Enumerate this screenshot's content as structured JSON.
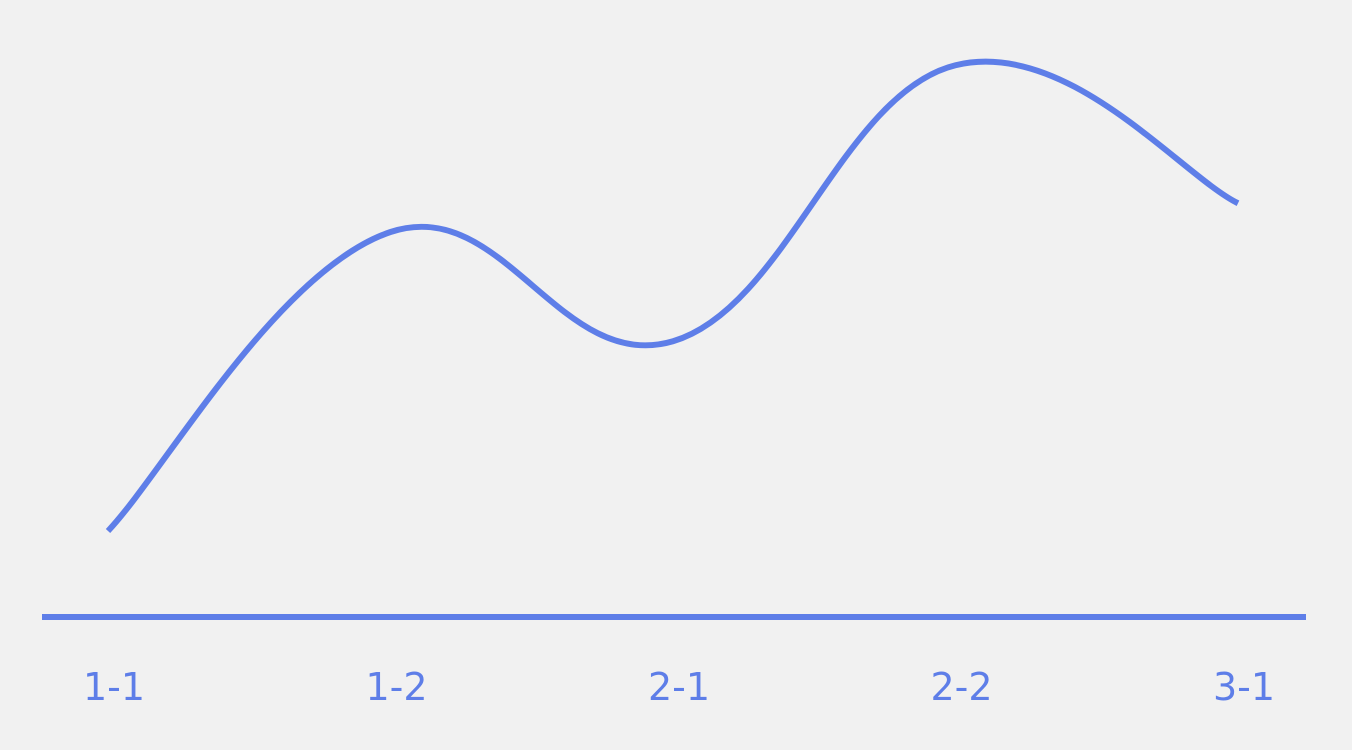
{
  "chart_data": {
    "type": "line",
    "smooth": true,
    "x": [
      "1-1",
      "1-2",
      "2-1",
      "2-2",
      "3-1"
    ],
    "series": [
      {
        "values": [
          12,
          64,
          45,
          93,
          69
        ]
      }
    ],
    "title": "",
    "xlabel": "",
    "ylabel": "",
    "ylim": [
      0,
      100
    ],
    "grid": false,
    "legend": "none",
    "colors": {
      "line": "#5e7ee8",
      "axis": "#5e7ee8",
      "tick_label": "#5e7ee8",
      "background": "#f1f1f1"
    }
  }
}
